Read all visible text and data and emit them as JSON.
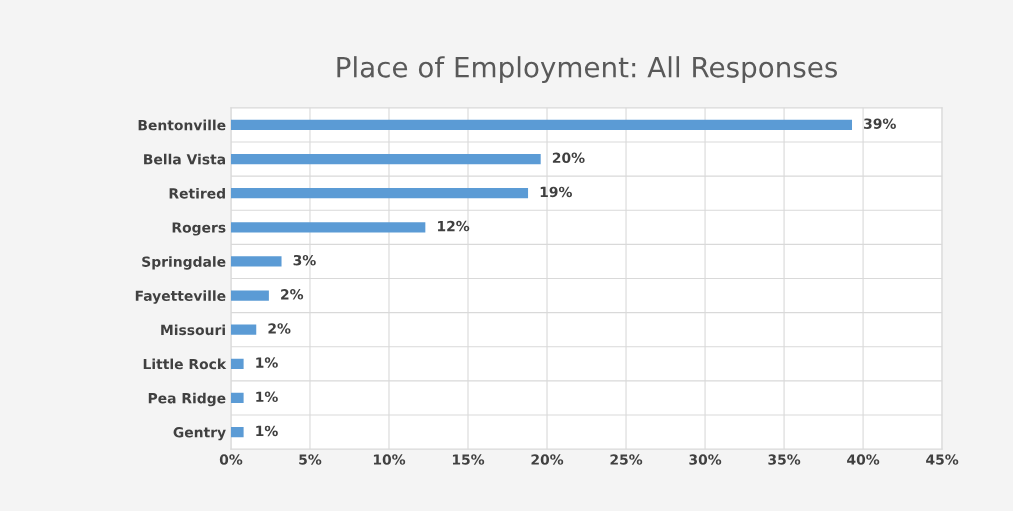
{
  "chart_data": {
    "type": "bar",
    "orientation": "horizontal",
    "title": "Place of Employment: All Responses",
    "categories": [
      "Bentonville",
      "Bella Vista",
      "Retired",
      "Rogers",
      "Springdale",
      "Fayetteville",
      "Missouri",
      "Little Rock",
      "Pea Ridge",
      "Gentry"
    ],
    "values": [
      39.3,
      19.6,
      18.8,
      12.3,
      3.2,
      2.4,
      1.6,
      0.8,
      0.8,
      0.8
    ],
    "value_labels": [
      "39%",
      "20%",
      "19%",
      "12%",
      "3%",
      "2%",
      "2%",
      "1%",
      "1%",
      "1%"
    ],
    "color": "#5b9bd5",
    "xlim": [
      0,
      45
    ],
    "xticks": [
      {
        "value": 0,
        "label": "0%"
      },
      {
        "value": 5,
        "label": "5%"
      },
      {
        "value": 10,
        "label": "10%"
      },
      {
        "value": 15,
        "label": "15%"
      },
      {
        "value": 20,
        "label": "20%"
      },
      {
        "value": 25,
        "label": "25%"
      },
      {
        "value": 30,
        "label": "30%"
      },
      {
        "value": 35,
        "label": "35%"
      },
      {
        "value": 40,
        "label": "40%"
      },
      {
        "value": 45,
        "label": "45%"
      }
    ],
    "grid": true
  }
}
